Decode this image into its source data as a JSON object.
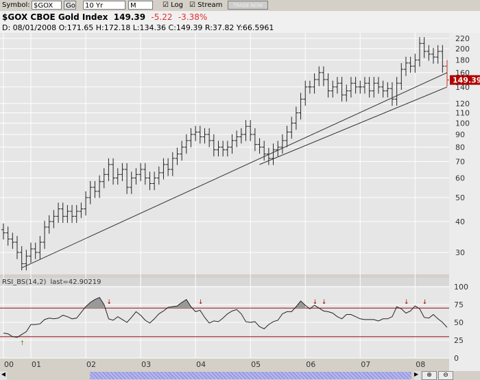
{
  "toolbar": {
    "symbol_label": "Symbol:",
    "symbol_value": "$GOX",
    "go_label": "Go",
    "range": "10 Yr",
    "period": "M",
    "log_label": "Log",
    "log_checked": true,
    "stream_label": "Stream",
    "stream_checked": true,
    "trade_label": "TRADE NOW"
  },
  "header": {
    "title": "$GOX CBOE Gold Index",
    "last": "149.39",
    "change": "-5.22",
    "change_pct": "-3.38%",
    "detail": "D: 08/01/2008 O:171.65 H:172.18 L:134.36 C:149.39 R:37.82 Y:66.5961"
  },
  "colors": {
    "down": "#e03030",
    "price_tag": "#b00000",
    "grid_bg": "#e6e6e6",
    "rsi_line": "#a02020"
  },
  "chart_data": [
    {
      "type": "ohlc",
      "scale": "log",
      "start": "2000-07",
      "frequency": "monthly",
      "closes": [
        36,
        34,
        33,
        30,
        27,
        29,
        31,
        30,
        33,
        38,
        40,
        42,
        45,
        42,
        44,
        42,
        44,
        45,
        50,
        55,
        53,
        58,
        62,
        68,
        60,
        62,
        65,
        55,
        60,
        62,
        65,
        60,
        57,
        60,
        63,
        68,
        65,
        72,
        75,
        80,
        85,
        90,
        92,
        88,
        90,
        85,
        78,
        80,
        78,
        80,
        85,
        88,
        90,
        97,
        90,
        82,
        80,
        75,
        72,
        78,
        80,
        85,
        92,
        100,
        110,
        125,
        140,
        140,
        150,
        160,
        150,
        135,
        140,
        145,
        130,
        135,
        145,
        140,
        140,
        145,
        135,
        145,
        140,
        135,
        138,
        125,
        145,
        165,
        175,
        170,
        180,
        210,
        195,
        190,
        185,
        195,
        170,
        149.39
      ],
      "last_tag": "149.39",
      "y_ticks": [
        30,
        40,
        50,
        60,
        70,
        80,
        90,
        100,
        110,
        120,
        140,
        160,
        180,
        200,
        220
      ],
      "x_ticks": [
        "00",
        "01",
        "02",
        "03",
        "04",
        "05",
        "06",
        "07",
        "08"
      ],
      "trendlines": [
        {
          "from": [
            "2000-11",
            26
          ],
          "to": [
            "2008-08",
            160
          ]
        },
        {
          "from": [
            "2005-03",
            68
          ],
          "to": [
            "2008-08",
            140
          ]
        }
      ]
    },
    {
      "type": "line",
      "title": "RSI_BS(14,2)",
      "last_label": "last=42.90219",
      "ylim": [
        0,
        100
      ],
      "y_ticks": [
        0,
        25,
        50,
        75,
        100
      ],
      "levels": [
        70,
        30
      ],
      "values": [
        35,
        34,
        30,
        29,
        33,
        37,
        47,
        47,
        48,
        54,
        56,
        55,
        56,
        60,
        58,
        55,
        56,
        64,
        72,
        78,
        82,
        85,
        75,
        55,
        53,
        58,
        54,
        50,
        57,
        65,
        60,
        53,
        49,
        55,
        62,
        66,
        71,
        72,
        73,
        78,
        82,
        72,
        65,
        67,
        57,
        49,
        52,
        51,
        56,
        62,
        66,
        68,
        62,
        51,
        50,
        51,
        44,
        41,
        47,
        51,
        53,
        62,
        65,
        65,
        72,
        80,
        74,
        69,
        74,
        70,
        66,
        65,
        63,
        58,
        55,
        61,
        61,
        58,
        55,
        54,
        54,
        54,
        52,
        55,
        55,
        58,
        72,
        69,
        63,
        66,
        73,
        69,
        57,
        56,
        61,
        55,
        50,
        43
      ],
      "sell_signals": [
        "2002-06",
        "2004-02",
        "2006-03",
        "2006-05",
        "2007-11",
        "2008-03"
      ],
      "buy_signals": [
        "2000-11"
      ]
    }
  ]
}
